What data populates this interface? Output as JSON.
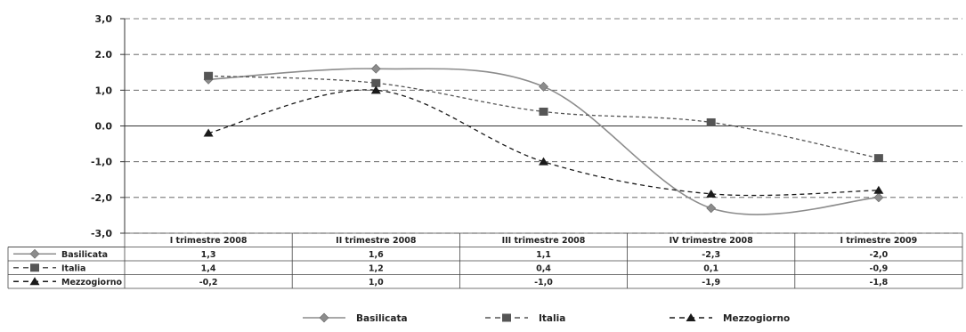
{
  "chart_data": {
    "type": "line",
    "title": "",
    "categories": [
      "I trimestre 2008",
      "II trimestre 2008",
      "III trimestre 2008",
      "IV trimestre 2008",
      "I trimestre 2009"
    ],
    "ylim": [
      -3.0,
      3.0
    ],
    "yticks": [
      "3,0",
      "2.0",
      "1,0",
      "0.0",
      "-1,0",
      "-2,0",
      "-3,0"
    ],
    "grid": true,
    "legend_position": "bottom",
    "data_table": true,
    "series": [
      {
        "name": "Basilicata",
        "values": [
          1.3,
          1.6,
          1.1,
          -2.3,
          -2.0
        ],
        "labels": [
          "1,3",
          "1,6",
          "1,1",
          "-2,3",
          "-2,0"
        ],
        "color": "#8c8c8c",
        "marker": "diamond",
        "line": "solid"
      },
      {
        "name": "Italia",
        "values": [
          1.4,
          1.2,
          0.4,
          0.1,
          -0.9
        ],
        "labels": [
          "1,4",
          "1,2",
          "0,4",
          "0,1",
          "-0,9"
        ],
        "color": "#555555",
        "marker": "square",
        "line": "dashed"
      },
      {
        "name": "Mezzogiorno",
        "values": [
          -0.2,
          1.0,
          -1.0,
          -1.9,
          -1.8
        ],
        "labels": [
          "-0,2",
          "1,0",
          "-1,0",
          "-1,9",
          "-1,8"
        ],
        "color": "#1a1a1a",
        "marker": "triangle",
        "line": "dashed"
      }
    ]
  }
}
